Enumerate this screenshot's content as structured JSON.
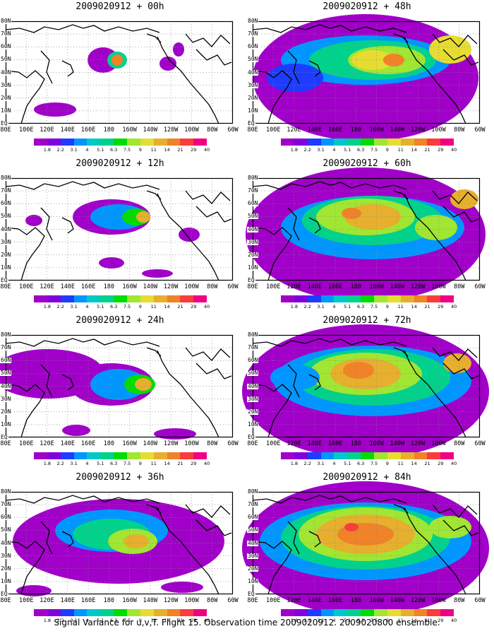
{
  "footer": "Signal Variance for u,v,T. Flight 15. Observation time 2009020912. 2009020800 ensemble.",
  "lat_labels": [
    "80N",
    "70N",
    "60N",
    "50N",
    "40N",
    "30N",
    "20N",
    "10N",
    "EQ"
  ],
  "lon_labels": [
    "80E",
    "100E",
    "120E",
    "140E",
    "160E",
    "180",
    "160W",
    "140W",
    "120W",
    "100W",
    "80W",
    "60W"
  ],
  "colorbar": {
    "levels": [
      "1.8",
      "2.2",
      "3.1",
      "4",
      "5.1",
      "6.3",
      "7.5",
      "9",
      "11",
      "14",
      "21",
      "29",
      "40"
    ],
    "colors": [
      "#a000c8",
      "#8200dc",
      "#1e3cff",
      "#0096ff",
      "#00c8c8",
      "#00d28c",
      "#00dc00",
      "#a0e632",
      "#e6dc32",
      "#e6af2d",
      "#f08228",
      "#fa3c3c",
      "#f00082",
      "#ffffff"
    ]
  },
  "panels": [
    {
      "title": "2009020912 + 00h",
      "level": 0
    },
    {
      "title": "2009020912 + 48h",
      "level": 4
    },
    {
      "title": "2009020912 + 12h",
      "level": 1
    },
    {
      "title": "2009020912 + 60h",
      "level": 5
    },
    {
      "title": "2009020912 + 24h",
      "level": 2
    },
    {
      "title": "2009020912 + 72h",
      "level": 6
    },
    {
      "title": "2009020912 + 36h",
      "level": 3
    },
    {
      "title": "2009020912 + 84h",
      "level": 7
    }
  ]
}
